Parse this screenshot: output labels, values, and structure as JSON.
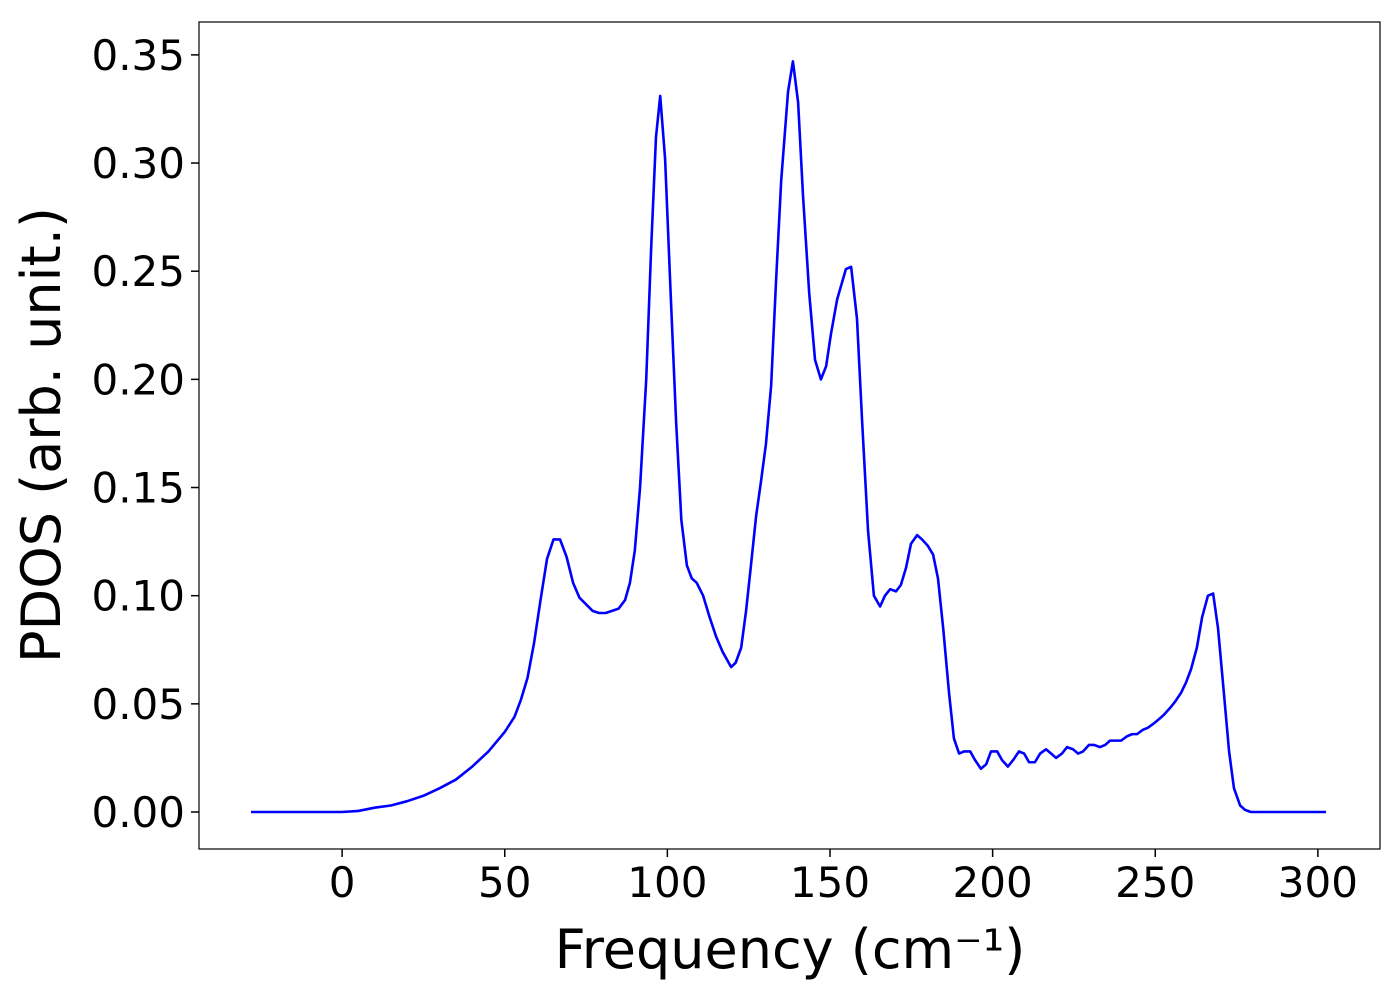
{
  "chart_data": {
    "type": "line",
    "xlabel": "Frequency (cm⁻¹)",
    "ylabel": "PDOS (arb. unit.)",
    "color": "#0000ff",
    "x": [
      -28,
      -20,
      -10,
      0,
      5,
      10,
      15,
      20,
      25,
      30,
      35,
      40,
      45,
      50,
      53,
      55,
      57,
      59,
      61,
      63,
      65,
      67,
      69,
      71,
      73,
      75,
      77,
      79,
      81,
      83,
      85,
      87,
      88.5,
      90,
      91.6,
      93.5,
      95,
      96.5,
      97.8,
      99.3,
      101,
      102.7,
      104.3,
      106,
      107.5,
      109,
      111,
      113,
      115,
      117,
      118.5,
      119.6,
      121,
      122.7,
      124.2,
      125.7,
      127.3,
      128.8,
      130.3,
      131.9,
      133.4,
      135,
      137.1,
      138.6,
      140.2,
      141.7,
      143.6,
      145.4,
      147.2,
      148.8,
      150.3,
      152.2,
      154.9,
      156.5,
      158.3,
      159.9,
      161.7,
      163.5,
      165.4,
      166.9,
      168.5,
      170.3,
      171.8,
      173.4,
      174.9,
      176.8,
      178.3,
      180.1,
      181.7,
      183.2,
      184.8,
      186.6,
      188.1,
      189.7,
      191.2,
      193.1,
      194.6,
      196.4,
      198,
      199.5,
      201.4,
      202.9,
      204.7,
      206.3,
      208.1,
      209.7,
      211.2,
      213,
      214.6,
      216.4,
      218,
      219.5,
      221.3,
      222.9,
      224.7,
      226.3,
      227.8,
      229.6,
      231.2,
      233,
      234.6,
      236.1,
      237.9,
      239.5,
      241.3,
      242.9,
      244.4,
      246.2,
      247.8,
      249.6,
      251.2,
      252.7,
      254.5,
      256.1,
      257.9,
      259.5,
      261,
      262.8,
      264.4,
      266.2,
      267.8,
      269.3,
      271.1,
      272.7,
      274.2,
      276.1,
      277.6,
      279.4,
      290,
      302.5
    ],
    "values": [
      0,
      0,
      0,
      0,
      0.0005,
      0.002,
      0.003,
      0.005,
      0.0075,
      0.011,
      0.015,
      0.021,
      0.028,
      0.037,
      0.044,
      0.052,
      0.062,
      0.078,
      0.098,
      0.117,
      0.126,
      0.126,
      0.118,
      0.106,
      0.099,
      0.096,
      0.093,
      0.092,
      0.092,
      0.093,
      0.094,
      0.098,
      0.106,
      0.121,
      0.15,
      0.2,
      0.26,
      0.312,
      0.331,
      0.302,
      0.24,
      0.18,
      0.135,
      0.114,
      0.108,
      0.106,
      0.1,
      0.09,
      0.081,
      0.074,
      0.07,
      0.067,
      0.069,
      0.076,
      0.093,
      0.114,
      0.137,
      0.153,
      0.17,
      0.197,
      0.245,
      0.292,
      0.333,
      0.347,
      0.328,
      0.285,
      0.24,
      0.209,
      0.2,
      0.206,
      0.221,
      0.237,
      0.251,
      0.252,
      0.228,
      0.18,
      0.13,
      0.1,
      0.095,
      0.1,
      0.103,
      0.102,
      0.105,
      0.113,
      0.124,
      0.128,
      0.126,
      0.123,
      0.119,
      0.108,
      0.085,
      0.055,
      0.034,
      0.027,
      0.028,
      0.028,
      0.024,
      0.02,
      0.022,
      0.028,
      0.028,
      0.024,
      0.021,
      0.024,
      0.028,
      0.027,
      0.023,
      0.023,
      0.027,
      0.029,
      0.027,
      0.025,
      0.027,
      0.03,
      0.029,
      0.027,
      0.028,
      0.031,
      0.031,
      0.03,
      0.031,
      0.033,
      0.033,
      0.033,
      0.035,
      0.036,
      0.036,
      0.038,
      0.039,
      0.041,
      0.043,
      0.045,
      0.048,
      0.051,
      0.055,
      0.06,
      0.066,
      0.076,
      0.09,
      0.1,
      0.101,
      0.085,
      0.055,
      0.028,
      0.011,
      0.003,
      0.001,
      0,
      0,
      0
    ],
    "xlim": [
      -44.0,
      319.1
    ],
    "ylim": [
      -0.0171,
      0.3652
    ],
    "xticks": [
      0,
      50,
      100,
      150,
      200,
      250,
      300
    ],
    "yticks": [
      {
        "value": 0,
        "label": "0.00"
      },
      0.05,
      {
        "value": 0.1,
        "label": "0.10"
      },
      0.15,
      {
        "value": 0.2,
        "label": "0.20"
      },
      0.25,
      {
        "value": 0.3,
        "label": "0.30"
      },
      0.35
    ]
  }
}
